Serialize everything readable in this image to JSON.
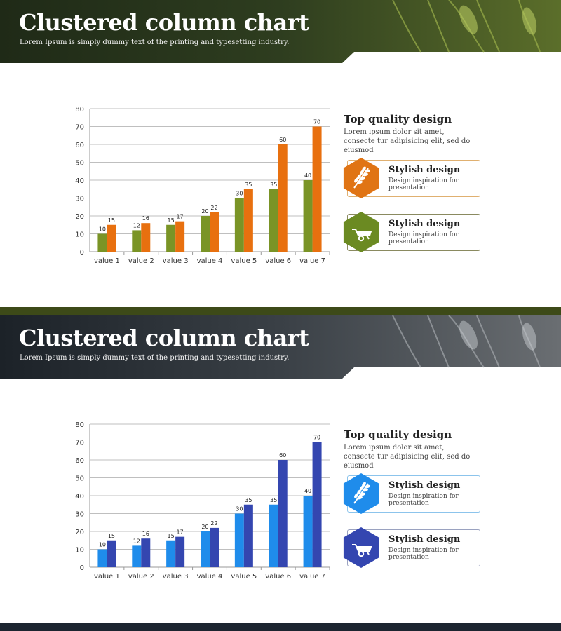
{
  "slides": [
    {
      "title": "Clustered column chart",
      "subtitle": "Lorem Ipsum is simply dummy text of the printing and typesetting industry.",
      "info_title": "Top quality design",
      "info_text": "Lorem ipsum dolor sit amet, consecte tur adipisicing elit, sed do eiusmod",
      "cards": [
        {
          "title": "Stylish design",
          "text": "Design inspiration for presentation",
          "icon": "wheat-icon"
        },
        {
          "title": "Stylish design",
          "text": "Design inspiration for presentation",
          "icon": "wheelbarrow-icon"
        }
      ],
      "colors": {
        "header": "#2f3d22",
        "band": "#3d4a18",
        "series1": "#7a9426",
        "series2": "#e8700f",
        "card1": "#e07414",
        "card2": "#6b8a22",
        "card1_border": "#e0b070",
        "card2_border": "#8a8a60"
      }
    },
    {
      "title": "Clustered column chart",
      "subtitle": "Lorem Ipsum is simply dummy text of the printing and typesetting industry.",
      "info_title": "Top quality design",
      "info_text": "Lorem ipsum dolor sit amet, consecte tur adipisicing elit, sed do eiusmod",
      "cards": [
        {
          "title": "Stylish design",
          "text": "Design inspiration for presentation",
          "icon": "wheat-icon"
        },
        {
          "title": "Stylish design",
          "text": "Design inspiration for presentation",
          "icon": "wheelbarrow-icon"
        }
      ],
      "colors": {
        "header": "#2c3238",
        "band": "#1d2530",
        "series1": "#1f8ceb",
        "series2": "#3446b0",
        "card1": "#1f8ceb",
        "card2": "#3446b0",
        "card1_border": "#8cc4ec",
        "card2_border": "#9aa2c0"
      }
    }
  ],
  "chart_data": [
    {
      "type": "bar",
      "categories": [
        "value 1",
        "value 2",
        "value 3",
        "value 4",
        "value 5",
        "value 6",
        "value 7"
      ],
      "series": [
        {
          "values": [
            10,
            12,
            15,
            20,
            30,
            35,
            40
          ]
        },
        {
          "values": [
            15,
            16,
            17,
            22,
            35,
            60,
            70
          ]
        }
      ],
      "yticks": [
        "0",
        "10",
        "20",
        "30",
        "40",
        "50",
        "60",
        "70",
        "80"
      ],
      "ylim": [
        0,
        80
      ],
      "grid": true
    },
    {
      "type": "bar",
      "categories": [
        "value 1",
        "value 2",
        "value 3",
        "value 4",
        "value 5",
        "value 6",
        "value 7"
      ],
      "series": [
        {
          "values": [
            10,
            12,
            15,
            20,
            30,
            35,
            40
          ]
        },
        {
          "values": [
            15,
            16,
            17,
            22,
            35,
            60,
            70
          ]
        }
      ],
      "yticks": [
        "0",
        "10",
        "20",
        "30",
        "40",
        "50",
        "60",
        "70",
        "80"
      ],
      "ylim": [
        0,
        80
      ],
      "grid": true
    }
  ]
}
